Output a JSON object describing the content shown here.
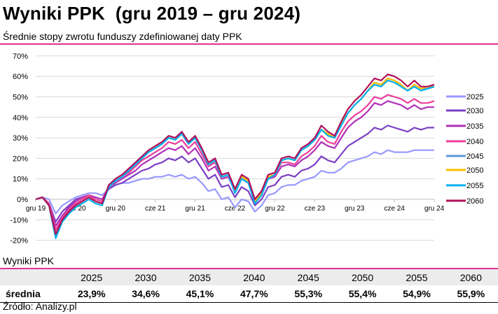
{
  "title": "Wyniki PPK  (gru 2019 – gru 2024)",
  "subtitle": "Średnie stopy zwrotu funduszy zdefiniowanej daty PPK",
  "chart_data": {
    "type": "line",
    "title": "Średnie stopy zwrotu funduszy zdefiniowanej daty PPK",
    "ylabel": "",
    "xlabel": "",
    "ylim": [
      -20,
      70
    ],
    "yticks": [
      "-20%",
      "-10%",
      "0%",
      "10%",
      "20%",
      "30%",
      "40%",
      "50%",
      "60%",
      "70%"
    ],
    "yvalues": [
      -20,
      -10,
      0,
      10,
      20,
      30,
      40,
      50,
      60,
      70
    ],
    "xticks": [
      "gru 19",
      "cze 20",
      "gru 20",
      "cze 21",
      "gru 21",
      "cze 22",
      "gru 22",
      "cze 23",
      "gru 23",
      "cze 24",
      "gru 24"
    ],
    "legend": "right",
    "grid": true,
    "series": [
      {
        "name": "2025",
        "color": "#9999ff",
        "values": [
          0,
          1,
          0,
          -7,
          -3,
          -1,
          1,
          2,
          3,
          3,
          2,
          5,
          7,
          8,
          8,
          9,
          10,
          10,
          11,
          11,
          12,
          11,
          12,
          10,
          11,
          8,
          4,
          5,
          0,
          1,
          -4,
          0,
          -1,
          -6,
          -3,
          2,
          3,
          6,
          7,
          7,
          9,
          10,
          11,
          14,
          13,
          13,
          15,
          18,
          19,
          20,
          21,
          23,
          22,
          24,
          23,
          23,
          23,
          24,
          24,
          24,
          24
        ]
      },
      {
        "name": "2030",
        "color": "#7b3fc4",
        "values": [
          0,
          1,
          -2,
          -11,
          -6,
          -3,
          0,
          1,
          2,
          1,
          0,
          5,
          7,
          8,
          10,
          12,
          14,
          15,
          17,
          18,
          20,
          19,
          21,
          18,
          20,
          15,
          10,
          12,
          6,
          7,
          1,
          6,
          4,
          -3,
          0,
          6,
          7,
          11,
          12,
          11,
          14,
          15,
          17,
          21,
          19,
          18,
          22,
          26,
          28,
          30,
          32,
          35,
          34,
          36,
          35,
          34,
          33,
          35,
          34,
          35,
          35
        ]
      },
      {
        "name": "2035",
        "color": "#b030b8",
        "values": [
          0,
          1,
          -2,
          -13,
          -8,
          -4,
          -1,
          1,
          2,
          1,
          0,
          6,
          8,
          10,
          12,
          14,
          17,
          19,
          21,
          23,
          25,
          24,
          26,
          22,
          25,
          20,
          14,
          16,
          10,
          11,
          4,
          10,
          8,
          0,
          3,
          10,
          11,
          16,
          17,
          16,
          19,
          21,
          24,
          28,
          26,
          25,
          30,
          35,
          38,
          40,
          43,
          47,
          46,
          48,
          47,
          46,
          44,
          46,
          44,
          45,
          45
        ]
      },
      {
        "name": "2040",
        "color": "#ec3c9c",
        "values": [
          0,
          1,
          -2,
          -15,
          -9,
          -5,
          -2,
          0,
          2,
          0,
          -1,
          6,
          9,
          11,
          13,
          16,
          19,
          21,
          23,
          25,
          28,
          27,
          29,
          25,
          28,
          22,
          16,
          18,
          11,
          12,
          5,
          11,
          9,
          0,
          4,
          11,
          12,
          18,
          18,
          17,
          21,
          23,
          26,
          31,
          28,
          27,
          33,
          38,
          41,
          43,
          46,
          50,
          49,
          51,
          50,
          49,
          47,
          49,
          47,
          47,
          48
        ]
      },
      {
        "name": "2045",
        "color": "#5b9bd5",
        "values": [
          0,
          1,
          -3,
          -18,
          -10,
          -6,
          -3,
          -1,
          1,
          -1,
          -2,
          6,
          9,
          11,
          14,
          17,
          20,
          23,
          25,
          27,
          30,
          29,
          32,
          27,
          30,
          24,
          17,
          19,
          11,
          12,
          4,
          11,
          9,
          -1,
          3,
          11,
          12,
          19,
          20,
          19,
          24,
          26,
          29,
          34,
          32,
          30,
          37,
          42,
          46,
          49,
          53,
          57,
          56,
          59,
          58,
          56,
          53,
          56,
          54,
          54,
          55
        ]
      },
      {
        "name": "2050",
        "color": "#ffc000",
        "values": [
          0,
          1,
          -3,
          -18,
          -10,
          -6,
          -3,
          -1,
          1,
          -1,
          -2,
          6,
          9,
          11,
          14,
          17,
          20,
          23,
          25,
          27,
          30,
          29,
          32,
          27,
          30,
          24,
          17,
          19,
          11,
          12,
          4,
          11,
          9,
          -1,
          3,
          11,
          12,
          19,
          20,
          19,
          24,
          26,
          29,
          34,
          32,
          30,
          37,
          42,
          46,
          49,
          53,
          57,
          56,
          59,
          58,
          56,
          53,
          56,
          54,
          55,
          55
        ]
      },
      {
        "name": "2055",
        "color": "#00b0f0",
        "values": [
          0,
          1,
          -3,
          -19,
          -11,
          -7,
          -4,
          -2,
          0,
          -2,
          -3,
          6,
          9,
          11,
          14,
          17,
          20,
          23,
          25,
          27,
          30,
          29,
          32,
          27,
          30,
          24,
          17,
          19,
          11,
          12,
          3,
          10,
          8,
          -2,
          2,
          10,
          12,
          19,
          20,
          19,
          24,
          26,
          29,
          34,
          31,
          30,
          36,
          42,
          46,
          49,
          53,
          56,
          55,
          58,
          57,
          55,
          53,
          55,
          53,
          54,
          55
        ]
      },
      {
        "name": "2060",
        "color": "#b0105a",
        "values": [
          0,
          1,
          -3,
          -17,
          -10,
          -6,
          -3,
          -1,
          1,
          -1,
          -2,
          7,
          10,
          12,
          15,
          18,
          21,
          24,
          26,
          28,
          31,
          30,
          33,
          28,
          31,
          25,
          18,
          20,
          12,
          13,
          5,
          12,
          10,
          0,
          4,
          12,
          13,
          20,
          21,
          20,
          25,
          27,
          30,
          36,
          33,
          31,
          38,
          44,
          48,
          51,
          55,
          59,
          58,
          61,
          60,
          58,
          55,
          58,
          55,
          55,
          56
        ]
      }
    ]
  },
  "table": {
    "title": "Wyniki PPK",
    "headers": [
      "",
      "2025",
      "2030",
      "2035",
      "2040",
      "2045",
      "2050",
      "2055",
      "2060"
    ],
    "row_label": "średnia",
    "values": [
      "23,9%",
      "34,6%",
      "45,1%",
      "47,7%",
      "55,3%",
      "55,4%",
      "54,9%",
      "55,9%"
    ]
  },
  "source": "Źródło: Analizy.pl"
}
